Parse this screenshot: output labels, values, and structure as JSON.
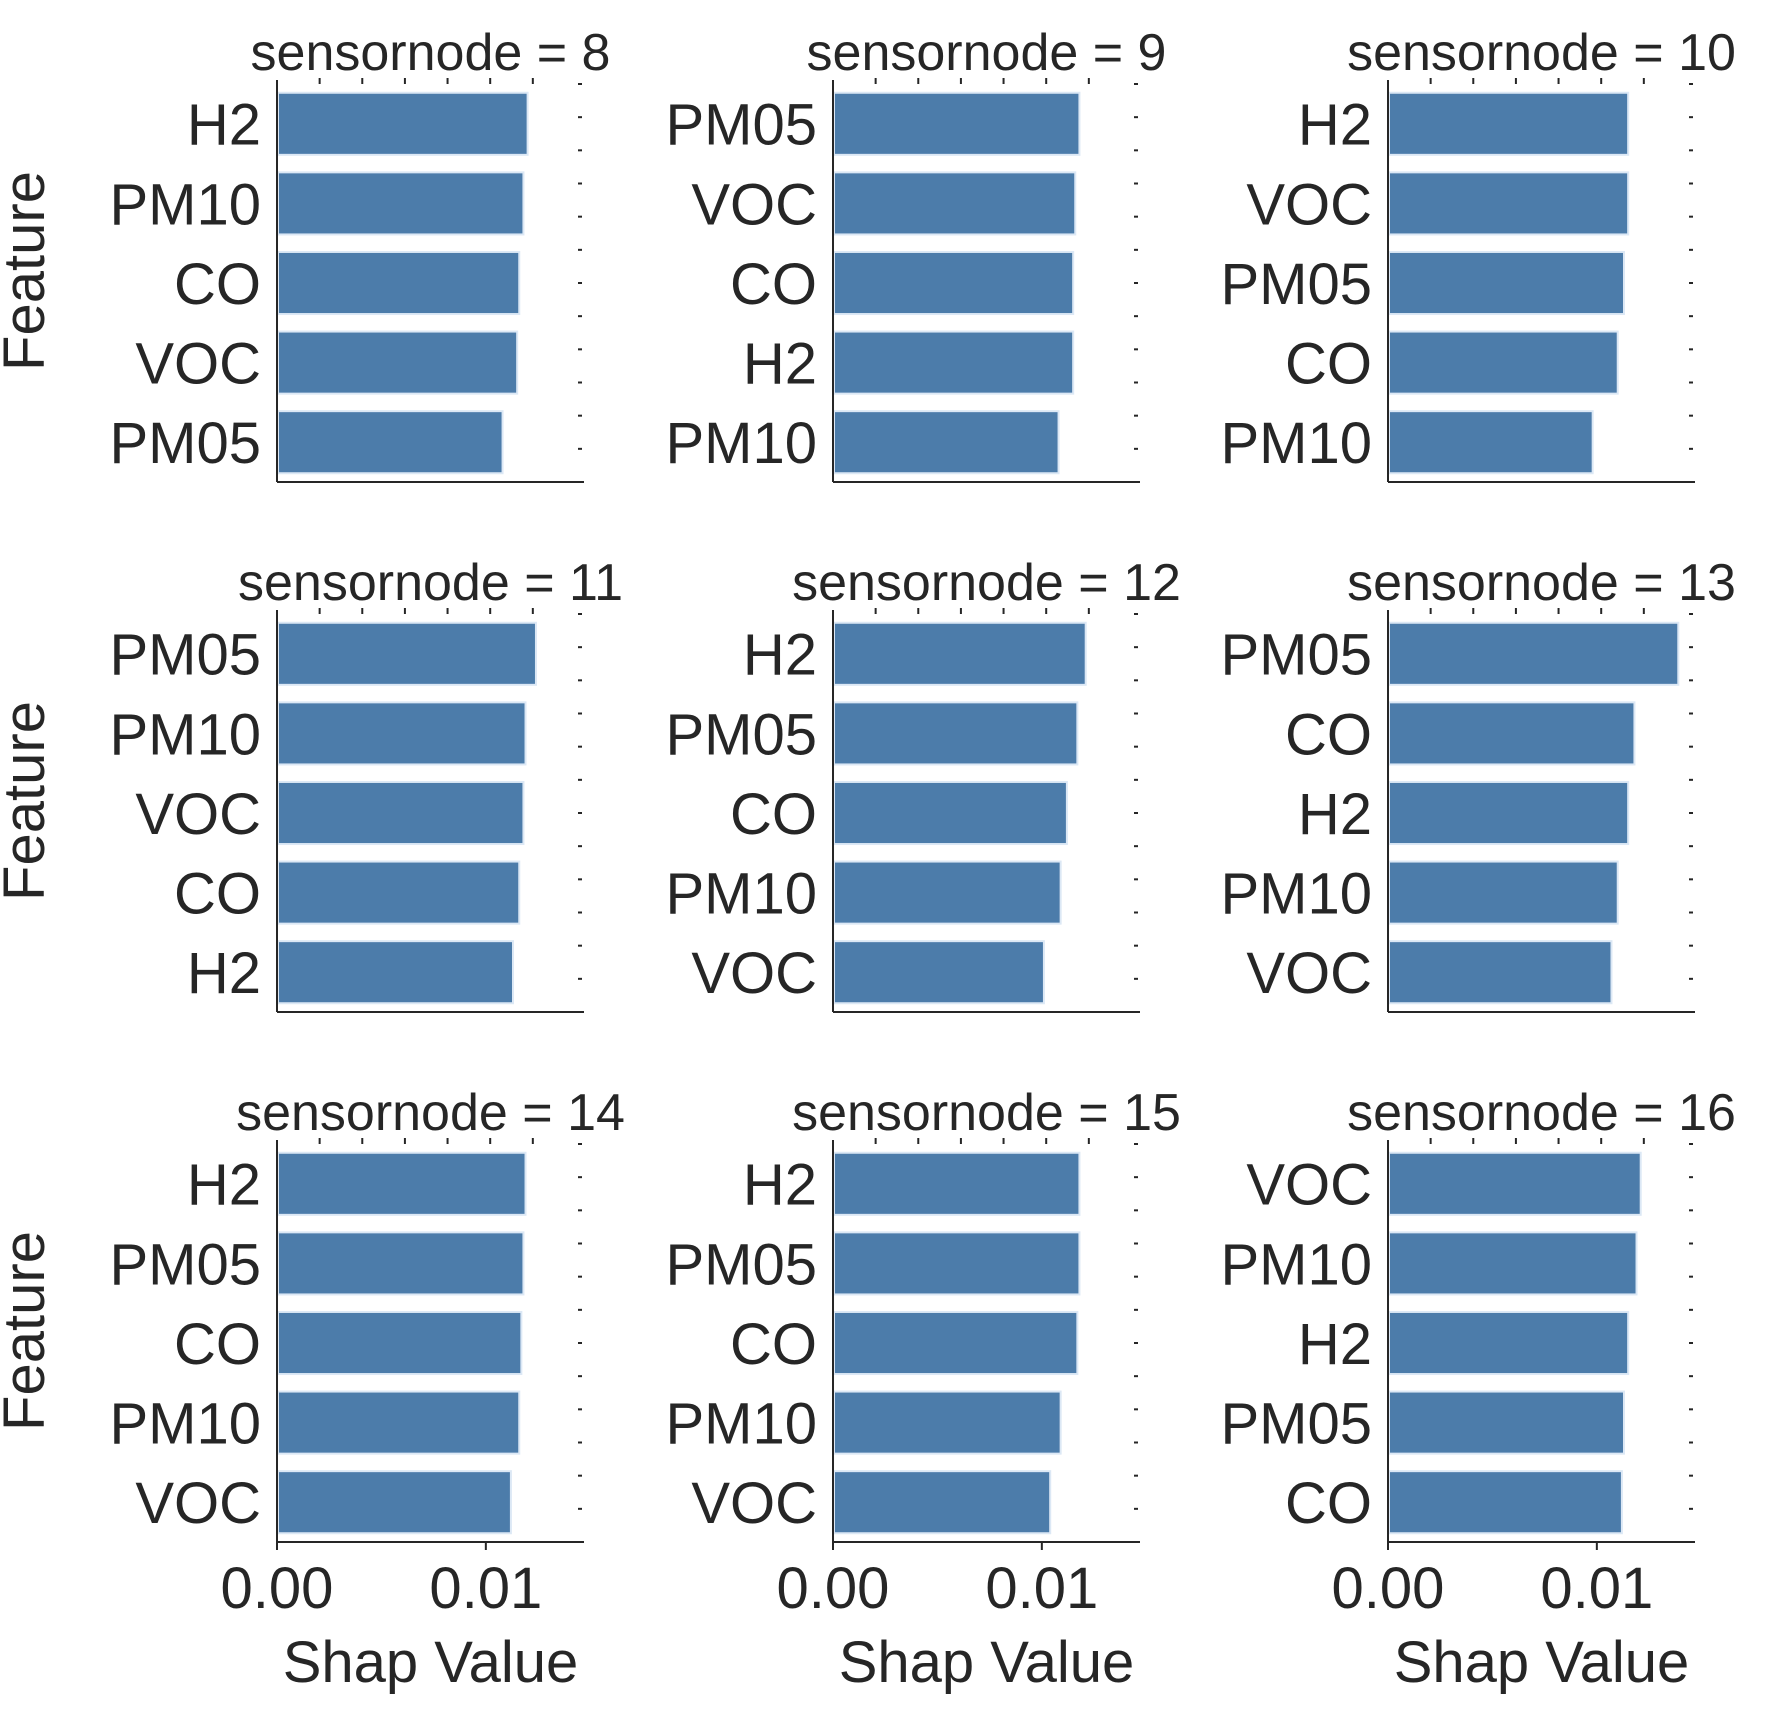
{
  "chart_data": {
    "type": "bar",
    "orientation": "horizontal",
    "layout": "facet-grid-3x3",
    "ylabel": "Feature",
    "xlabel": "Shap Value",
    "xlim": [
      0,
      0.0147
    ],
    "x_ticks": [
      0.0,
      0.01
    ],
    "x_tick_labels": [
      "0.00",
      "0.01"
    ],
    "bar_color": "#4c7caa",
    "bar_edge_color": "#dce8f5",
    "panels": [
      {
        "title": "sensornode = 8",
        "categories": [
          "H2",
          "PM10",
          "CO",
          "VOC",
          "PM05"
        ],
        "values": [
          0.012,
          0.0118,
          0.0116,
          0.0115,
          0.0108
        ]
      },
      {
        "title": "sensornode = 9",
        "categories": [
          "PM05",
          "VOC",
          "CO",
          "H2",
          "PM10"
        ],
        "values": [
          0.0118,
          0.0116,
          0.0115,
          0.0115,
          0.0108
        ]
      },
      {
        "title": "sensornode = 10",
        "categories": [
          "H2",
          "VOC",
          "PM05",
          "CO",
          "PM10"
        ],
        "values": [
          0.0115,
          0.0115,
          0.0113,
          0.011,
          0.0098
        ]
      },
      {
        "title": "sensornode = 11",
        "categories": [
          "PM05",
          "PM10",
          "VOC",
          "CO",
          "H2"
        ],
        "values": [
          0.0124,
          0.0119,
          0.0118,
          0.0116,
          0.0113
        ]
      },
      {
        "title": "sensornode = 12",
        "categories": [
          "H2",
          "PM05",
          "CO",
          "PM10",
          "VOC"
        ],
        "values": [
          0.0121,
          0.0117,
          0.0112,
          0.0109,
          0.0101
        ]
      },
      {
        "title": "sensornode = 13",
        "categories": [
          "PM05",
          "CO",
          "H2",
          "PM10",
          "VOC"
        ],
        "values": [
          0.0139,
          0.0118,
          0.0115,
          0.011,
          0.0107
        ]
      },
      {
        "title": "sensornode = 14",
        "categories": [
          "H2",
          "PM05",
          "CO",
          "PM10",
          "VOC"
        ],
        "values": [
          0.0119,
          0.0118,
          0.0117,
          0.0116,
          0.0112
        ]
      },
      {
        "title": "sensornode = 15",
        "categories": [
          "H2",
          "PM05",
          "CO",
          "PM10",
          "VOC"
        ],
        "values": [
          0.0118,
          0.0118,
          0.0117,
          0.0109,
          0.0104
        ]
      },
      {
        "title": "sensornode = 16",
        "categories": [
          "VOC",
          "PM10",
          "H2",
          "PM05",
          "CO"
        ],
        "values": [
          0.0121,
          0.0119,
          0.0115,
          0.0113,
          0.0112
        ]
      }
    ]
  }
}
